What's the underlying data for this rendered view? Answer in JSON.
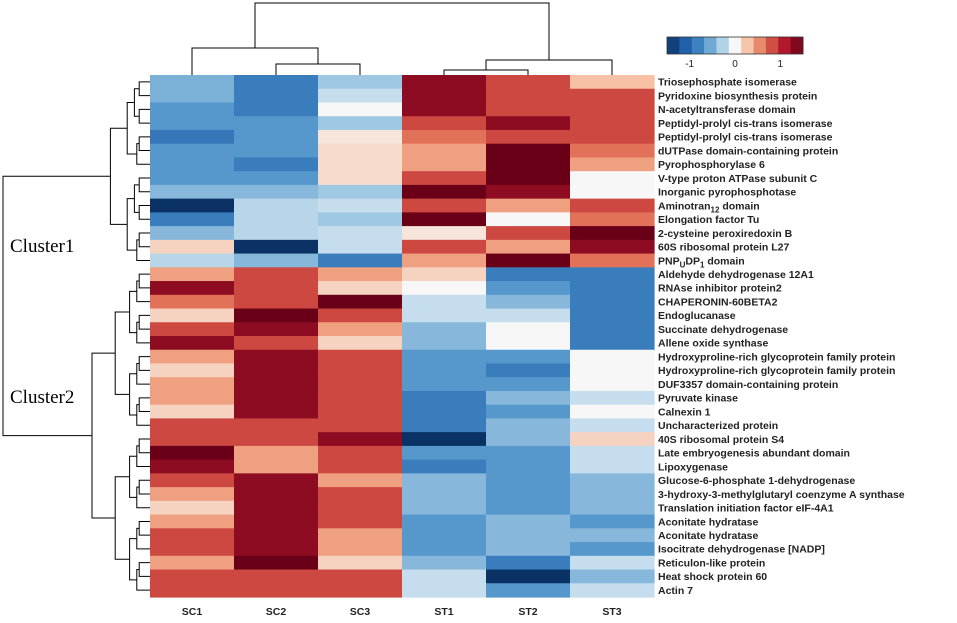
{
  "chart_data": {
    "type": "heatmap",
    "title": "",
    "columns": [
      "SC1",
      "SC2",
      "SC3",
      "ST1",
      "ST2",
      "ST3"
    ],
    "rows": [
      {
        "label": "Triosephosphate isomerase",
        "values": [
          -0.5,
          -0.85,
          -0.35,
          1.3,
          0.85,
          0.3
        ]
      },
      {
        "label": "Pyridoxine biosynthesis protein",
        "values": [
          -0.5,
          -0.85,
          -0.2,
          1.3,
          0.85,
          0.85
        ]
      },
      {
        "label": "N-acetyltransferase domain",
        "values": [
          -0.65,
          -0.85,
          0.0,
          1.3,
          0.85,
          0.85
        ]
      },
      {
        "label": "Peptidyl-prolyl cis-trans isomerase",
        "values": [
          -0.65,
          -0.65,
          -0.35,
          0.85,
          1.3,
          0.85
        ]
      },
      {
        "label": "Peptidyl-prolyl cis-trans isomerase",
        "values": [
          -0.9,
          -0.65,
          0.1,
          0.65,
          0.85,
          0.85
        ]
      },
      {
        "label": "dUTPase domain-containing protein",
        "values": [
          -0.65,
          -0.65,
          0.15,
          0.45,
          1.5,
          0.65
        ]
      },
      {
        "label": "Pyrophosphorylase 6",
        "values": [
          -0.65,
          -0.85,
          0.15,
          0.45,
          1.5,
          0.45
        ]
      },
      {
        "label": "V-type proton ATPase subunit C",
        "values": [
          -0.65,
          -0.65,
          0.15,
          0.85,
          1.5,
          0.0
        ]
      },
      {
        "label": "Inorganic pyrophosphotase",
        "values": [
          -0.45,
          -0.45,
          -0.35,
          1.5,
          1.3,
          0.0
        ]
      },
      {
        "label": "Aminotran12 domain",
        "values": [
          -1.5,
          -0.25,
          -0.2,
          0.85,
          0.45,
          0.85
        ]
      },
      {
        "label": "Elongation factor Tu",
        "values": [
          -0.85,
          -0.25,
          -0.35,
          1.5,
          0.0,
          0.65
        ]
      },
      {
        "label": "2-cysteine peroxiredoxin B",
        "values": [
          -0.45,
          -0.25,
          -0.2,
          0.1,
          0.85,
          1.5
        ]
      },
      {
        "label": "60S ribosomal protein L27",
        "values": [
          0.2,
          -1.5,
          -0.2,
          0.85,
          0.45,
          1.3
        ]
      },
      {
        "label": "PNPUDP1 domain",
        "values": [
          -0.25,
          -0.45,
          -0.85,
          0.45,
          1.5,
          0.65
        ]
      },
      {
        "label": "Aldehyde dehydrogenase 12A1",
        "values": [
          0.45,
          0.85,
          0.45,
          0.2,
          -0.85,
          -0.85
        ]
      },
      {
        "label": "RNAse inhibitor protein2",
        "values": [
          1.3,
          0.85,
          0.2,
          0.0,
          -0.65,
          -0.85
        ]
      },
      {
        "label": "CHAPERONIN-60BETA2",
        "values": [
          0.65,
          0.85,
          1.5,
          -0.2,
          -0.45,
          -0.85
        ]
      },
      {
        "label": "Endoglucanase",
        "values": [
          0.2,
          1.5,
          0.85,
          -0.2,
          -0.2,
          -0.85
        ]
      },
      {
        "label": "Succinate dehydrogenase",
        "values": [
          0.85,
          1.3,
          0.45,
          -0.45,
          0.0,
          -0.85
        ]
      },
      {
        "label": "Allene oxide synthase",
        "values": [
          1.3,
          0.85,
          0.2,
          -0.45,
          0.0,
          -0.85
        ]
      },
      {
        "label": "Hydroxyproline-rich glycoprotein family protein",
        "values": [
          0.45,
          1.3,
          0.85,
          -0.65,
          -0.65,
          0.0
        ]
      },
      {
        "label": "Hydroxyproline-rich glycoprotein family protein",
        "values": [
          0.2,
          1.3,
          0.85,
          -0.65,
          -0.85,
          0.0
        ]
      },
      {
        "label": "DUF3357 domain-containing protein",
        "values": [
          0.45,
          1.3,
          0.85,
          -0.65,
          -0.65,
          0.0
        ]
      },
      {
        "label": "Pyruvate kinase",
        "values": [
          0.45,
          1.3,
          0.85,
          -0.85,
          -0.45,
          -0.2
        ]
      },
      {
        "label": "Calnexin 1",
        "values": [
          0.2,
          1.3,
          0.85,
          -0.85,
          -0.65,
          0.0
        ]
      },
      {
        "label": "Uncharacterized protein",
        "values": [
          0.85,
          0.85,
          0.85,
          -0.85,
          -0.45,
          -0.2
        ]
      },
      {
        "label": "40S ribosomal protein S4",
        "values": [
          0.85,
          0.85,
          1.3,
          -1.5,
          -0.45,
          0.2
        ]
      },
      {
        "label": "Late embryogenesis abundant domain",
        "values": [
          1.5,
          0.45,
          0.85,
          -0.65,
          -0.65,
          -0.2
        ]
      },
      {
        "label": "Lipoxygenase",
        "values": [
          1.3,
          0.45,
          0.85,
          -0.85,
          -0.65,
          -0.2
        ]
      },
      {
        "label": "Glucose-6-phosphate 1-dehydrogenase",
        "values": [
          0.85,
          1.3,
          0.45,
          -0.45,
          -0.65,
          -0.45
        ]
      },
      {
        "label": "3-hydroxy-3-methylglutaryl coenzyme A synthase",
        "values": [
          0.45,
          1.3,
          0.85,
          -0.45,
          -0.65,
          -0.45
        ]
      },
      {
        "label": "Translation initiation factor eIF-4A1",
        "values": [
          0.2,
          1.3,
          0.85,
          -0.45,
          -0.65,
          -0.45
        ]
      },
      {
        "label": "Aconitate hydratase",
        "values": [
          0.45,
          1.3,
          0.85,
          -0.65,
          -0.45,
          -0.65
        ]
      },
      {
        "label": "Aconitate hydratase",
        "values": [
          0.85,
          1.3,
          0.45,
          -0.65,
          -0.45,
          -0.45
        ]
      },
      {
        "label": "Isocitrate dehydrogenase [NADP]",
        "values": [
          0.85,
          1.3,
          0.45,
          -0.65,
          -0.45,
          -0.65
        ]
      },
      {
        "label": "Reticulon-like protein",
        "values": [
          0.45,
          1.5,
          0.2,
          -0.45,
          -0.85,
          -0.2
        ]
      },
      {
        "label": "Heat shock protein 60",
        "values": [
          0.85,
          0.85,
          0.85,
          -0.2,
          -1.5,
          -0.45
        ]
      },
      {
        "label": "Actin 7",
        "values": [
          0.85,
          0.85,
          0.85,
          -0.2,
          -0.65,
          -0.2
        ]
      }
    ],
    "clusters": [
      {
        "label": "Cluster1",
        "rows": [
          0,
          13
        ]
      },
      {
        "label": "Cluster2",
        "rows": [
          14,
          37
        ]
      }
    ],
    "legend": {
      "placement": "top-right",
      "ticks": [
        {
          "value": -1,
          "label": "-1"
        },
        {
          "value": 0,
          "label": "0"
        },
        {
          "value": 1,
          "label": "1"
        }
      ],
      "range": [
        -1.5,
        1.5
      ]
    },
    "color_scale": [
      {
        "value": -1.5,
        "color": "#0a3264"
      },
      {
        "value": -1.1,
        "color": "#1f5fa8"
      },
      {
        "value": -0.7,
        "color": "#4a8fc8"
      },
      {
        "value": -0.35,
        "color": "#9fc9e3"
      },
      {
        "value": 0.0,
        "color": "#f7f7f7"
      },
      {
        "value": 0.35,
        "color": "#f6b896"
      },
      {
        "value": 0.7,
        "color": "#dd654e"
      },
      {
        "value": 1.1,
        "color": "#b0172a"
      },
      {
        "value": 1.5,
        "color": "#6a0018"
      }
    ]
  }
}
